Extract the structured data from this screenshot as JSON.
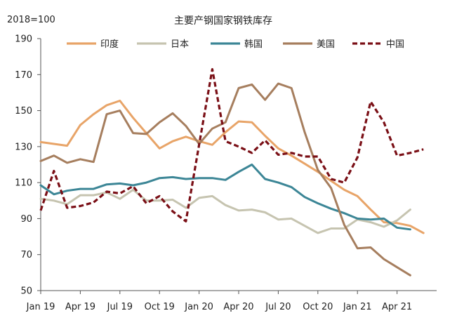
{
  "chart_data": {
    "type": "line",
    "title": "主要产钢国家钢铁库存",
    "unit_label": "2018=100",
    "xlabel": "",
    "ylabel": "",
    "ylim": [
      50,
      190
    ],
    "yticks": [
      50,
      70,
      90,
      110,
      130,
      150,
      170,
      190
    ],
    "xlim": [
      0,
      30
    ],
    "xticks": [
      {
        "x": 0,
        "label": "Jan 19"
      },
      {
        "x": 3,
        "label": "Apr 19"
      },
      {
        "x": 6,
        "label": "Jul 19"
      },
      {
        "x": 9,
        "label": "Oct 19"
      },
      {
        "x": 12,
        "label": "Jan 20"
      },
      {
        "x": 15,
        "label": "Apr 20"
      },
      {
        "x": 18,
        "label": "Jul 20"
      },
      {
        "x": 21,
        "label": "Oct 20"
      },
      {
        "x": 24,
        "label": "Jan 21"
      },
      {
        "x": 27,
        "label": "Apr 21"
      }
    ],
    "grid": false,
    "legend_position": "top",
    "series": [
      {
        "name": "印度",
        "color": "#E8A468",
        "dash": "solid",
        "values": [
          132.5,
          131.5,
          130.5,
          142,
          148,
          153,
          155.5,
          146,
          137.5,
          129,
          133,
          135.5,
          133,
          131,
          138,
          144,
          143.5,
          136,
          129,
          125,
          120.5,
          116,
          111,
          106,
          102.5,
          95,
          88,
          87.5,
          86,
          82
        ]
      },
      {
        "name": "日本",
        "color": "#C6C4B0",
        "dash": "solid",
        "values": [
          101,
          100,
          98,
          103,
          103,
          104.5,
          101,
          106,
          100,
          100,
          100.5,
          96,
          101.5,
          102.5,
          97.5,
          94.5,
          95,
          93.5,
          89.5,
          90,
          86,
          82,
          84.5,
          84.5,
          89.5,
          88,
          85.5,
          89,
          95
        ]
      },
      {
        "name": "韩国",
        "color": "#3C8696",
        "dash": "solid",
        "values": [
          108.5,
          103.5,
          105.5,
          106.5,
          106.5,
          109,
          109.5,
          108.5,
          110,
          112.5,
          113,
          112,
          112.5,
          112.5,
          111.5,
          116,
          120,
          112,
          110,
          107.5,
          102,
          98.5,
          95.5,
          93,
          90,
          89.5,
          90,
          85,
          84
        ]
      },
      {
        "name": "美国",
        "color": "#A67E5E",
        "dash": "solid",
        "values": [
          122,
          125,
          121,
          123,
          121.5,
          148,
          150,
          137.5,
          137,
          143.5,
          148.5,
          141.5,
          131.5,
          140,
          143.5,
          162.5,
          164.5,
          156,
          165,
          162.5,
          138,
          117,
          107,
          86.5,
          73.5,
          74,
          67.5,
          63,
          58.5
        ]
      },
      {
        "name": "中国",
        "color": "#7A0F16",
        "dash": "dashed",
        "values": [
          94.5,
          116.5,
          96,
          97,
          99,
          105,
          104,
          108,
          98.5,
          102.5,
          94,
          88.5,
          131,
          173,
          133,
          130,
          126.5,
          133.5,
          125.5,
          126.5,
          124.5,
          124.5,
          112,
          110,
          124,
          155,
          143.5,
          125,
          126.5,
          128.5
        ]
      }
    ]
  }
}
